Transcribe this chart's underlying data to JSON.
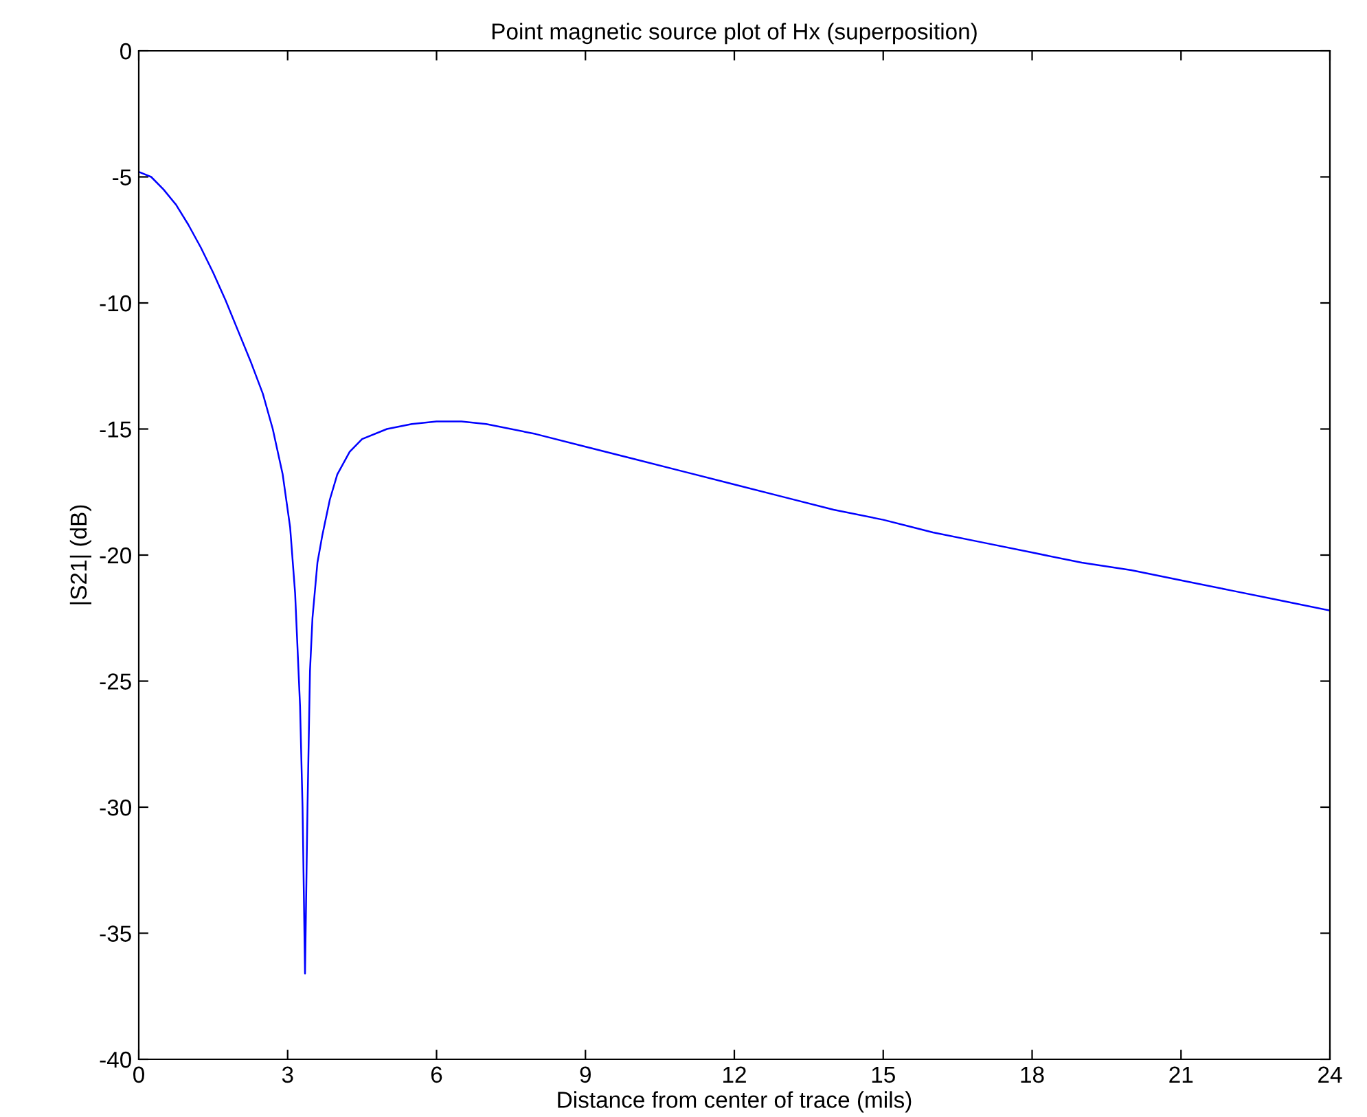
{
  "chart_data": {
    "type": "line",
    "title": "Point magnetic source plot of Hx (superposition)",
    "xlabel": "Distance from center of trace (mils)",
    "ylabel": "|S21| (dB)",
    "series": [
      {
        "color": "#0000ff",
        "x": [
          0,
          0.25,
          0.5,
          0.75,
          1,
          1.25,
          1.5,
          1.75,
          2,
          2.25,
          2.5,
          2.7,
          2.9,
          3.05,
          3.15,
          3.25,
          3.3,
          3.35,
          3.4,
          3.45,
          3.5,
          3.6,
          3.7,
          3.85,
          4,
          4.25,
          4.5,
          5,
          5.5,
          6,
          6.5,
          7,
          8,
          9,
          10,
          11,
          12,
          13,
          14,
          15,
          16,
          17,
          18,
          19,
          20,
          21,
          22,
          23,
          24
        ],
        "values": [
          -4.8,
          -5.0,
          -5.5,
          -6.1,
          -6.9,
          -7.8,
          -8.8,
          -9.9,
          -11.1,
          -12.3,
          -13.6,
          -15.0,
          -16.8,
          -18.9,
          -21.5,
          -26,
          -30,
          -36.6,
          -30,
          -24.6,
          -22.5,
          -20.3,
          -19.2,
          -17.8,
          -16.8,
          -15.9,
          -15.4,
          -15.0,
          -14.8,
          -14.7,
          -14.7,
          -14.8,
          -15.2,
          -15.7,
          -16.2,
          -16.7,
          -17.2,
          -17.7,
          -18.2,
          -18.6,
          -19.1,
          -19.5,
          -19.9,
          -20.3,
          -20.6,
          -21.0,
          -21.4,
          -21.8,
          -22.2
        ]
      }
    ],
    "xlim": [
      0,
      24
    ],
    "xticks": [
      0,
      3,
      6,
      9,
      12,
      15,
      18,
      21,
      24
    ],
    "ylim": [
      -40,
      0
    ],
    "yticks": [
      -40,
      -35,
      -30,
      -25,
      -20,
      -15,
      -10,
      -5,
      0
    ],
    "grid": false,
    "legend": false,
    "marker": "none",
    "line_style": "solid"
  }
}
